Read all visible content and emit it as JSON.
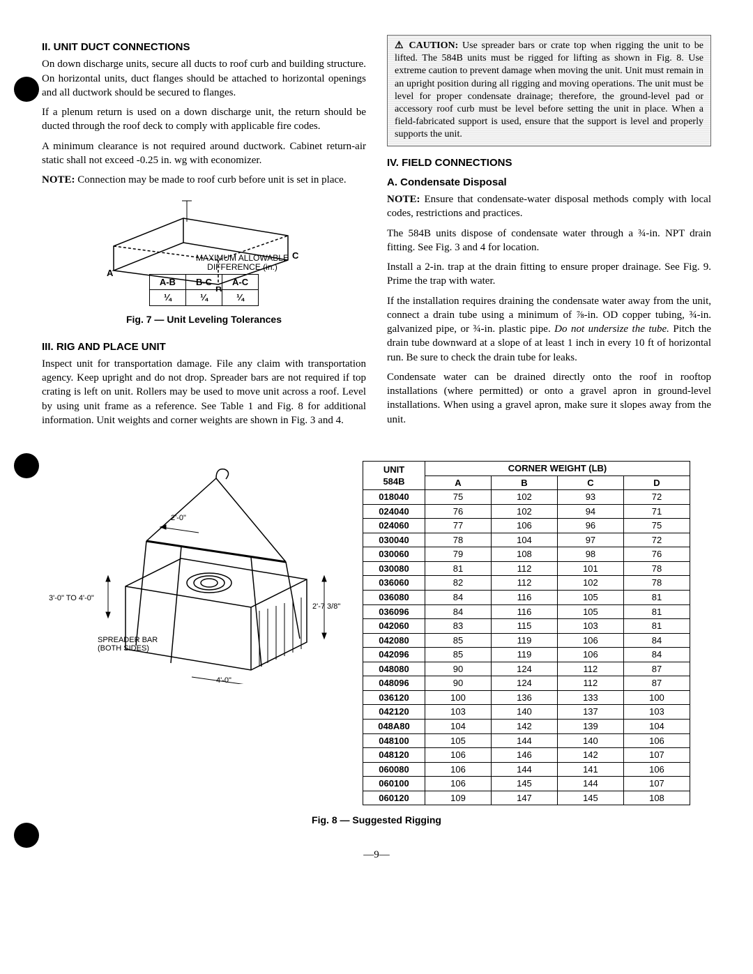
{
  "section2": {
    "heading": "II. UNIT DUCT CONNECTIONS",
    "p1": "On down discharge units, secure all ducts to roof curb and building structure. On horizontal units, duct flanges should be attached to horizontal openings and all ductwork should be secured to flanges.",
    "p2": "If a plenum return is used on a down discharge unit, the return should be ducted through the roof deck to comply with applicable fire codes.",
    "p3": "A minimum clearance is not required around ductwork. Cabinet return-air static shall not exceed -0.25 in. wg with economizer.",
    "note_lead": "NOTE:",
    "note": " Connection may be made to roof curb before unit is set in place."
  },
  "fig7": {
    "diff_label1": "MAXIMUM ALLOWABLE",
    "diff_label2": "DIFFERENCE (in.)",
    "headers": [
      "A-B",
      "B-C",
      "A-C"
    ],
    "values": [
      "¼",
      "¼",
      "¼"
    ],
    "caption": "Fig. 7 — Unit Leveling Tolerances",
    "corner_a": "A",
    "corner_b": "B",
    "corner_c": "C"
  },
  "section3": {
    "heading": "III. RIG AND PLACE UNIT",
    "p1": "Inspect unit for transportation damage. File any claim with transportation agency. Keep upright and do not drop. Spreader bars are not required if top crating is left on unit. Rollers may be used to move unit across a roof. Level by using unit frame as a reference. See Table 1 and Fig. 8 for additional information. Unit weights and corner weights are shown in Fig. 3 and 4."
  },
  "caution": {
    "lead": "⚠ CAUTION:",
    "text": " Use spreader bars or crate top when rigging the unit to be lifted. The 584B units must be rigged for lifting as shown in Fig. 8. Use extreme caution to prevent damage when moving the unit. Unit must remain in an upright position during all rigging and moving operations. The unit must be level for proper condensate drainage; therefore, the ground-level pad or accessory roof curb must be level before setting the unit in place. When a field-fabricated support is used, ensure that the support is level and properly supports the unit."
  },
  "section4": {
    "heading": "IV. FIELD CONNECTIONS",
    "sub_a": "A. Condensate Disposal",
    "note_lead": "NOTE:",
    "note": " Ensure that condensate-water disposal methods comply with local codes, restrictions and practices.",
    "p1": "The 584B units dispose of condensate water through a ¾-in. NPT drain fitting. See Fig. 3 and 4 for location.",
    "p2": "Install a 2-in. trap at the drain fitting to ensure proper drainage. See Fig. 9. Prime the trap with water.",
    "p3_a": "If the installation requires draining the condensate water away from the unit, connect a drain tube using a minimum of ⅞-in. OD copper tubing, ¾-in. galvanized pipe, or ¾-in. plastic pipe. ",
    "p3_i": "Do not undersize the tube.",
    "p3_b": " Pitch the drain tube downward at a slope of at least 1 inch in every 10 ft of horizontal run. Be sure to check the drain tube for leaks.",
    "p4": "Condensate water can be drained directly onto the roof in rooftop installations (where permitted) or onto a gravel apron in ground-level installations. When using a gravel apron, make sure it slopes away from the unit."
  },
  "fig8": {
    "dim_top": "2'-0\"",
    "dim_left": "3'-0\" TO 4'-0\"",
    "dim_right": "2'-7 3/8\"",
    "dim_bottom": "4'-0\"",
    "spreader": "SPREADER BAR\n(BOTH SIDES)",
    "caption": "Fig. 8 — Suggested Rigging"
  },
  "corner_table": {
    "unit_header": "UNIT\n584B",
    "weight_header": "CORNER WEIGHT (LB)",
    "cols": [
      "A",
      "B",
      "C",
      "D"
    ],
    "rows": [
      [
        "018040",
        "75",
        "102",
        "93",
        "72"
      ],
      [
        "024040",
        "76",
        "102",
        "94",
        "71"
      ],
      [
        "024060",
        "77",
        "106",
        "96",
        "75"
      ],
      [
        "030040",
        "78",
        "104",
        "97",
        "72"
      ],
      [
        "030060",
        "79",
        "108",
        "98",
        "76"
      ],
      [
        "030080",
        "81",
        "112",
        "101",
        "78"
      ],
      [
        "036060",
        "82",
        "112",
        "102",
        "78"
      ],
      [
        "036080",
        "84",
        "116",
        "105",
        "81"
      ],
      [
        "036096",
        "84",
        "116",
        "105",
        "81"
      ],
      [
        "042060",
        "83",
        "115",
        "103",
        "81"
      ],
      [
        "042080",
        "85",
        "119",
        "106",
        "84"
      ],
      [
        "042096",
        "85",
        "119",
        "106",
        "84"
      ],
      [
        "048080",
        "90",
        "124",
        "112",
        "87"
      ],
      [
        "048096",
        "90",
        "124",
        "112",
        "87"
      ],
      [
        "036120",
        "100",
        "136",
        "133",
        "100"
      ],
      [
        "042120",
        "103",
        "140",
        "137",
        "103"
      ],
      [
        "048A80",
        "104",
        "142",
        "139",
        "104"
      ],
      [
        "048100",
        "105",
        "144",
        "140",
        "106"
      ],
      [
        "048120",
        "106",
        "146",
        "142",
        "107"
      ],
      [
        "060080",
        "106",
        "144",
        "141",
        "106"
      ],
      [
        "060100",
        "106",
        "145",
        "144",
        "107"
      ],
      [
        "060120",
        "109",
        "147",
        "145",
        "108"
      ]
    ]
  },
  "page_number": "—9—"
}
